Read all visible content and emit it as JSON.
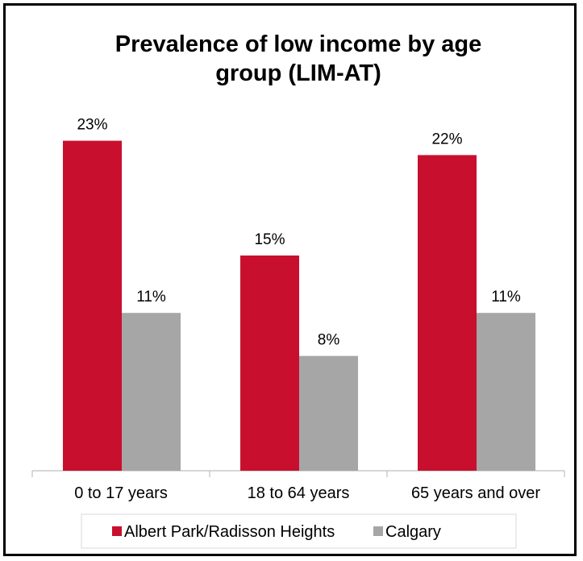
{
  "chart_data": {
    "type": "bar",
    "title_lines": [
      "Prevalence of low income by age",
      "group (LIM-AT)"
    ],
    "categories": [
      "0 to 17 years",
      "18 to 64 years",
      "65 years and over"
    ],
    "series": [
      {
        "name": "Albert Park/Radisson Heights",
        "color": "#C8102E",
        "values": [
          23,
          15,
          22
        ],
        "labels": [
          "23%",
          "15%",
          "22%"
        ]
      },
      {
        "name": "Calgary",
        "color": "#A6A6A6",
        "values": [
          11,
          8,
          11
        ],
        "labels": [
          "11%",
          "8%",
          "11%"
        ]
      }
    ],
    "ylim": [
      0,
      25
    ],
    "grid": false,
    "legend_position": "bottom",
    "axis_color": "#BFBFBF"
  }
}
